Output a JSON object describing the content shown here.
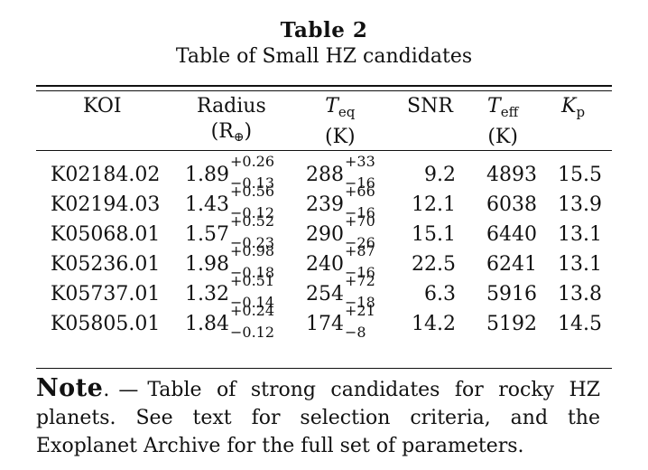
{
  "table": {
    "label": "Table 2",
    "caption": "Table of Small HZ candidates",
    "headers": {
      "koi": "KOI",
      "radius": "Radius",
      "radius_unit_open": "(R",
      "radius_unit_sub": "⊕",
      "radius_unit_close": ")",
      "teq_main": "T",
      "teq_sub": "eq",
      "teq_unit": "(K)",
      "snr": "SNR",
      "teff_main": "T",
      "teff_sub": "eff",
      "teff_unit": "(K)",
      "kp_main": "K",
      "kp_sub": "p"
    },
    "rows": [
      {
        "koi": "K02184.02",
        "radius": "1.89",
        "radius_plus": "+0.26",
        "radius_minus": "−0.13",
        "teq": "288",
        "teq_plus": "+33",
        "teq_minus": "−16",
        "snr": "9.2",
        "teff": "4893",
        "kp": "15.5"
      },
      {
        "koi": "K02194.03",
        "radius": "1.43",
        "radius_plus": "+0.56",
        "radius_minus": "−0.12",
        "teq": "239",
        "teq_plus": "+66",
        "teq_minus": "−16",
        "snr": "12.1",
        "teff": "6038",
        "kp": "13.9"
      },
      {
        "koi": "K05068.01",
        "radius": "1.57",
        "radius_plus": "+0.52",
        "radius_minus": "−0.23",
        "teq": "290",
        "teq_plus": "+70",
        "teq_minus": "−26",
        "snr": "15.1",
        "teff": "6440",
        "kp": "13.1"
      },
      {
        "koi": "K05236.01",
        "radius": "1.98",
        "radius_plus": "+0.98",
        "radius_minus": "−0.18",
        "teq": "240",
        "teq_plus": "+87",
        "teq_minus": "−16",
        "snr": "22.5",
        "teff": "6241",
        "kp": "13.1"
      },
      {
        "koi": "K05737.01",
        "radius": "1.32",
        "radius_plus": "+0.51",
        "radius_minus": "−0.14",
        "teq": "254",
        "teq_plus": "+72",
        "teq_minus": "−18",
        "snr": "6.3",
        "teff": "5916",
        "kp": "13.8"
      },
      {
        "koi": "K05805.01",
        "radius": "1.84",
        "radius_plus": "+0.24",
        "radius_minus": "−0.12",
        "teq": "174",
        "teq_plus": "+21",
        "teq_minus": "−8",
        "snr": "14.2",
        "teff": "5192",
        "kp": "14.5"
      }
    ]
  },
  "note": {
    "head": "Note",
    "dot": ".",
    "dash": "—",
    "text": "Table of strong candidates for rocky HZ planets. See text for selection criteria, and the Exoplanet Archive for the full set of parameters."
  }
}
